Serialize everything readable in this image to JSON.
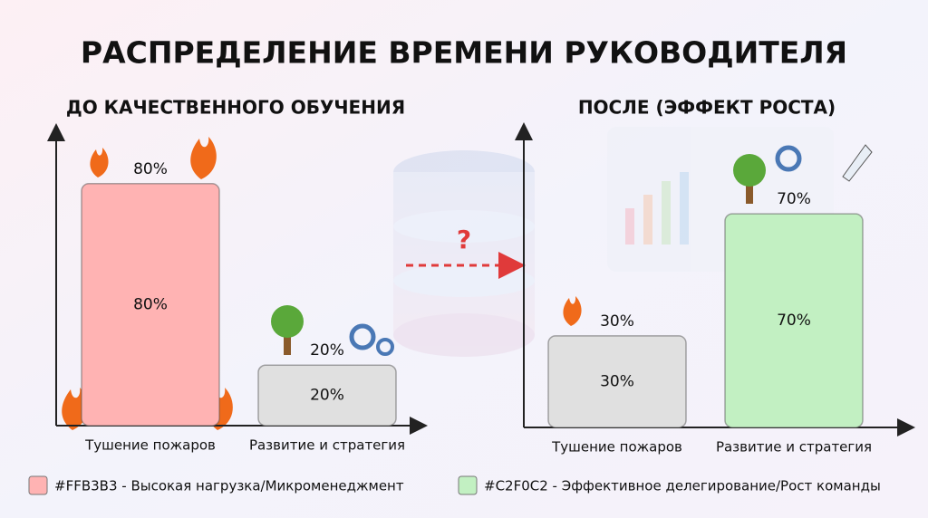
{
  "title": "РАСПРЕДЕЛЕНИЕ ВРЕМЕНИ РУКОВОДИТЕЛЯ",
  "annotation": "?",
  "legend": [
    {
      "label": "#FFB3B3 - Высокая нагрузка/Микроменеджмент",
      "color": "#FFB3B3"
    },
    {
      "label": "#C2F0C2 - Эффективное делегирование/Рост команды",
      "color": "#C2F0C2"
    }
  ],
  "chart_data": [
    {
      "type": "bar",
      "title": "ДО КАЧЕСТВЕННОГО ОБУЧЕНИЯ",
      "categories": [
        "Тушение пожаров",
        "Развитие и стратегия"
      ],
      "values": [
        80,
        20
      ],
      "value_labels": [
        "80%",
        "20%"
      ],
      "colors": [
        "#FFB3B3",
        "#E0E0E0"
      ],
      "ylim": [
        0,
        100
      ]
    },
    {
      "type": "bar",
      "title": "ПОСЛЕ (ЭФФЕКТ РОСТА)",
      "categories": [
        "Тушение пожаров",
        "Развитие и стратегия"
      ],
      "values": [
        30,
        70
      ],
      "value_labels": [
        "30%",
        "70%"
      ],
      "colors": [
        "#E0E0E0",
        "#C2F0C2"
      ],
      "ylim": [
        0,
        100
      ]
    }
  ]
}
